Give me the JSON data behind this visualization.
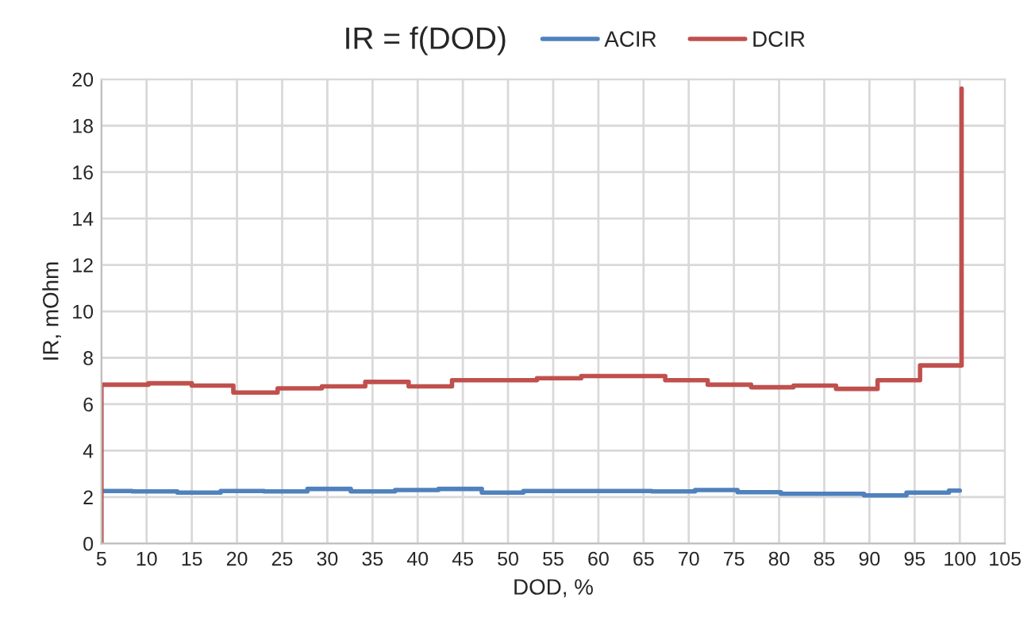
{
  "chart_data": {
    "type": "step",
    "title": "IR = f(DOD)",
    "xlabel": "DOD, %",
    "ylabel": "IR, mOhm",
    "series": [
      {
        "name": "ACIR",
        "color": "#4f81bd",
        "x": [
          5,
          8.4,
          13.4,
          18.2,
          23,
          27.8,
          32.6,
          37.5,
          42.3,
          47.1,
          51.7,
          56.5,
          61.2,
          65.9,
          70.7,
          75.4,
          80.2,
          84.9,
          89.4,
          94.1,
          98.8,
          100
        ],
        "values": [
          2.26,
          2.24,
          2.19,
          2.26,
          2.24,
          2.35,
          2.24,
          2.3,
          2.35,
          2.19,
          2.26,
          2.26,
          2.26,
          2.24,
          2.3,
          2.21,
          2.14,
          2.14,
          2.07,
          2.19,
          2.28,
          2.28
        ]
      },
      {
        "name": "DCIR",
        "color": "#c0504d",
        "x": [
          5,
          5,
          10.2,
          15,
          19.6,
          24.5,
          29.4,
          34.2,
          39,
          43.8,
          48.5,
          53.2,
          58.1,
          62.7,
          67.4,
          72.1,
          76.9,
          81.6,
          86.3,
          90.9,
          95.6,
          100.2
        ],
        "values": [
          0,
          6.84,
          6.9,
          6.8,
          6.5,
          6.68,
          6.77,
          6.96,
          6.77,
          7.03,
          7.03,
          7.12,
          7.21,
          7.21,
          7.03,
          6.84,
          6.73,
          6.8,
          6.66,
          7.03,
          7.67,
          19.6
        ]
      }
    ],
    "xlim": [
      5,
      105
    ],
    "xticks": [
      5,
      10,
      15,
      20,
      25,
      30,
      35,
      40,
      45,
      50,
      55,
      60,
      65,
      70,
      75,
      80,
      85,
      90,
      95,
      100,
      105
    ],
    "ylim": [
      0,
      20
    ],
    "yticks": [
      0,
      2,
      4,
      6,
      8,
      10,
      12,
      14,
      16,
      18,
      20
    ],
    "grid": true,
    "legend": "top",
    "line_style": "solid",
    "marker": "none"
  }
}
